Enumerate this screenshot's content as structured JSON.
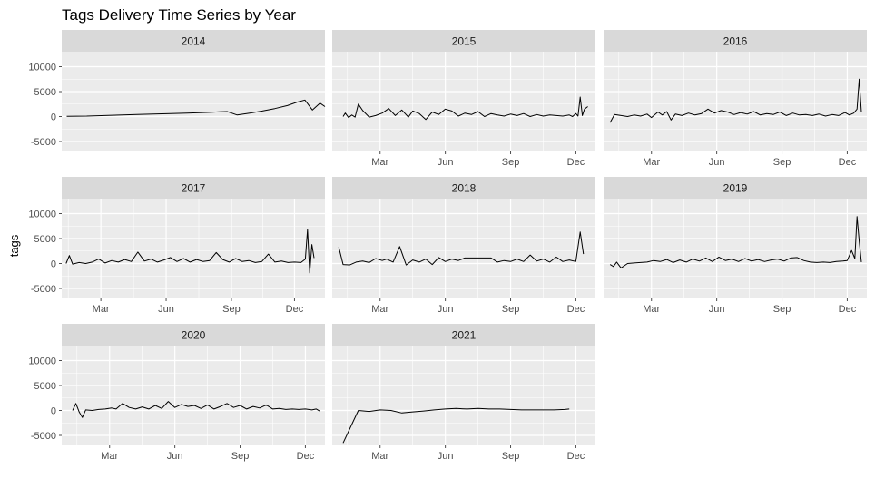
{
  "chart_data": {
    "type": "line",
    "title": "Tags Delivery Time Series by Year",
    "xlabel": "",
    "ylabel": "tags",
    "ylim": [
      -7000,
      13000
    ],
    "y_ticks": [
      -5000,
      0,
      5000,
      10000
    ],
    "y_tick_labels": [
      "-5000",
      "0",
      "5000",
      "10000"
    ],
    "x_ticks": [
      "Mar",
      "Jun",
      "Sep",
      "Dec"
    ],
    "grid": true,
    "legend": "none",
    "colors": {
      "panel_bg": "#ebebeb",
      "strip_bg": "#d9d9d9",
      "grid_major": "#ffffff",
      "line": "#000000",
      "tick": "#4d4d4d"
    },
    "facets": [
      {
        "label": "2014",
        "xlim": [
          0,
          10.5
        ],
        "show_x_axis": false,
        "x_tick_pos": [],
        "x_tick_labels": [],
        "x": [
          0.2,
          1,
          2,
          3,
          4,
          5,
          6,
          6.3,
          6.6,
          7,
          7.5,
          8,
          8.5,
          9,
          9.4,
          9.7,
          10,
          10.3,
          10.5
        ],
        "y": [
          50,
          100,
          250,
          400,
          550,
          700,
          850,
          950,
          1000,
          300,
          700,
          1100,
          1600,
          2200,
          2900,
          3300,
          1300,
          2700,
          2000
        ]
      },
      {
        "label": "2015",
        "xlim": [
          -0.2,
          11.9
        ],
        "show_x_axis": true,
        "x_tick_pos": [
          2,
          5,
          8,
          11
        ],
        "x_tick_labels": [
          "Mar",
          "Jun",
          "Sep",
          "Dec"
        ],
        "x": [
          0.3,
          0.4,
          0.55,
          0.7,
          0.85,
          1,
          1.2,
          1.5,
          1.8,
          2.1,
          2.4,
          2.7,
          3,
          3.3,
          3.5,
          3.8,
          4.1,
          4.4,
          4.7,
          5,
          5.3,
          5.6,
          5.9,
          6.2,
          6.5,
          6.8,
          7.1,
          7.4,
          7.7,
          8,
          8.3,
          8.6,
          8.9,
          9.2,
          9.5,
          9.8,
          10.1,
          10.4,
          10.7,
          10.85,
          11,
          11.1,
          11.2,
          11.3,
          11.4,
          11.55
        ],
        "y": [
          0,
          700,
          -200,
          300,
          -100,
          2500,
          1200,
          -100,
          200,
          700,
          1600,
          200,
          1300,
          -100,
          1100,
          600,
          -600,
          900,
          400,
          1500,
          1100,
          100,
          700,
          400,
          1000,
          0,
          600,
          300,
          100,
          500,
          200,
          600,
          0,
          400,
          100,
          300,
          200,
          100,
          300,
          0,
          600,
          100,
          3900,
          200,
          1500,
          2000
        ]
      },
      {
        "label": "2016",
        "xlim": [
          -0.2,
          11.9
        ],
        "show_x_axis": true,
        "x_tick_pos": [
          2,
          5,
          8,
          11
        ],
        "x_tick_labels": [
          "Mar",
          "Jun",
          "Sep",
          "Dec"
        ],
        "x": [
          0.1,
          0.3,
          0.6,
          0.9,
          1.2,
          1.5,
          1.8,
          2,
          2.3,
          2.5,
          2.7,
          2.9,
          3.1,
          3.4,
          3.7,
          4,
          4.3,
          4.6,
          4.9,
          5.2,
          5.5,
          5.8,
          6.1,
          6.4,
          6.7,
          7,
          7.3,
          7.6,
          7.9,
          8.2,
          8.5,
          8.8,
          9.1,
          9.4,
          9.7,
          10,
          10.3,
          10.6,
          10.9,
          11.1,
          11.3,
          11.45,
          11.55,
          11.65
        ],
        "y": [
          -1200,
          400,
          200,
          0,
          300,
          100,
          500,
          -200,
          900,
          300,
          1000,
          -700,
          500,
          200,
          700,
          300,
          600,
          1500,
          700,
          1200,
          900,
          400,
          800,
          500,
          1000,
          300,
          600,
          400,
          900,
          200,
          700,
          300,
          400,
          200,
          500,
          100,
          400,
          200,
          800,
          300,
          700,
          1500,
          7500,
          900
        ]
      },
      {
        "label": "2017",
        "xlim": [
          -0.2,
          11.9
        ],
        "show_x_axis": true,
        "x_tick_pos": [
          1.6,
          4.6,
          7.6,
          10.5
        ],
        "x_tick_labels": [
          "Mar",
          "Jun",
          "Sep",
          "Dec"
        ],
        "x": [
          0,
          0.15,
          0.3,
          0.6,
          0.9,
          1.2,
          1.5,
          1.8,
          2.1,
          2.4,
          2.7,
          3,
          3.3,
          3.6,
          3.9,
          4.2,
          4.5,
          4.8,
          5.1,
          5.4,
          5.7,
          6,
          6.3,
          6.6,
          6.9,
          7.2,
          7.5,
          7.8,
          8.1,
          8.4,
          8.7,
          9,
          9.3,
          9.6,
          9.9,
          10.2,
          10.5,
          10.8,
          11,
          11.1,
          11.2,
          11.3,
          11.4
        ],
        "y": [
          0,
          1600,
          -100,
          200,
          0,
          300,
          900,
          100,
          600,
          300,
          800,
          400,
          2300,
          500,
          900,
          300,
          700,
          1200,
          400,
          1000,
          300,
          800,
          400,
          600,
          2200,
          800,
          300,
          1000,
          400,
          600,
          200,
          400,
          1900,
          300,
          500,
          200,
          300,
          200,
          900,
          6800,
          -1900,
          3800,
          1100
        ]
      },
      {
        "label": "2018",
        "xlim": [
          -0.2,
          11.9
        ],
        "show_x_axis": true,
        "x_tick_pos": [
          2,
          5,
          8,
          11
        ],
        "x_tick_labels": [
          "Mar",
          "Jun",
          "Sep",
          "Dec"
        ],
        "x": [
          0.1,
          0.3,
          0.6,
          0.9,
          1.2,
          1.5,
          1.8,
          2.1,
          2.3,
          2.6,
          2.9,
          3.2,
          3.5,
          3.8,
          4.1,
          4.4,
          4.7,
          5,
          5.3,
          5.6,
          5.9,
          6.2,
          6.5,
          6.8,
          7.1,
          7.4,
          7.7,
          8,
          8.3,
          8.6,
          8.9,
          9.2,
          9.5,
          9.8,
          10.1,
          10.4,
          10.7,
          11,
          11.2,
          11.35
        ],
        "y": [
          3300,
          -200,
          -300,
          300,
          500,
          200,
          1000,
          600,
          900,
          300,
          3400,
          -300,
          700,
          300,
          900,
          -200,
          1200,
          400,
          900,
          600,
          1100,
          1100,
          1100,
          1100,
          1100,
          300,
          600,
          400,
          900,
          400,
          1700,
          500,
          900,
          300,
          1300,
          400,
          700,
          400,
          6300,
          1900
        ]
      },
      {
        "label": "2019",
        "xlim": [
          -0.2,
          11.9
        ],
        "show_x_axis": true,
        "x_tick_pos": [
          2,
          5,
          8,
          11
        ],
        "x_tick_labels": [
          "Mar",
          "Jun",
          "Sep",
          "Dec"
        ],
        "x": [
          0.1,
          0.25,
          0.4,
          0.6,
          0.9,
          1.2,
          1.5,
          1.8,
          2.1,
          2.4,
          2.7,
          3,
          3.3,
          3.6,
          3.9,
          4.2,
          4.5,
          4.8,
          5.1,
          5.4,
          5.7,
          6,
          6.3,
          6.6,
          6.9,
          7.2,
          7.5,
          7.8,
          8.1,
          8.4,
          8.7,
          9,
          9.3,
          9.6,
          9.9,
          10.2,
          10.5,
          10.8,
          11,
          11.2,
          11.35,
          11.45,
          11.55,
          11.65
        ],
        "y": [
          -200,
          -600,
          300,
          -900,
          0,
          100,
          200,
          300,
          600,
          400,
          800,
          200,
          700,
          300,
          900,
          500,
          1100,
          400,
          1300,
          600,
          900,
          400,
          1000,
          500,
          800,
          400,
          700,
          900,
          500,
          1100,
          1200,
          600,
          300,
          200,
          300,
          200,
          400,
          500,
          600,
          2600,
          1000,
          9400,
          4500,
          300
        ]
      },
      {
        "label": "2020",
        "xlim": [
          -0.2,
          11.9
        ],
        "show_x_axis": true,
        "x_tick_pos": [
          2,
          5,
          8,
          11
        ],
        "x_tick_labels": [
          "Mar",
          "Jun",
          "Sep",
          "Dec"
        ],
        "x": [
          0.3,
          0.45,
          0.6,
          0.75,
          0.9,
          1.2,
          1.5,
          1.8,
          2.1,
          2.3,
          2.6,
          2.9,
          3.2,
          3.5,
          3.8,
          4.1,
          4.4,
          4.7,
          5,
          5.3,
          5.6,
          5.9,
          6.2,
          6.5,
          6.8,
          7.1,
          7.4,
          7.7,
          8,
          8.3,
          8.6,
          8.9,
          9.2,
          9.5,
          9.8,
          10.1,
          10.4,
          10.7,
          11,
          11.3,
          11.5,
          11.65
        ],
        "y": [
          0,
          1400,
          -300,
          -1400,
          100,
          0,
          200,
          300,
          500,
          300,
          1400,
          600,
          300,
          700,
          300,
          1000,
          400,
          1800,
          600,
          1200,
          800,
          1000,
          400,
          1100,
          300,
          800,
          1400,
          600,
          1000,
          300,
          800,
          500,
          1100,
          300,
          400,
          200,
          300,
          200,
          300,
          100,
          300,
          -100
        ]
      },
      {
        "label": "2021",
        "xlim": [
          -0.2,
          11.9
        ],
        "show_x_axis": true,
        "x_tick_pos": [
          2,
          5,
          8,
          11
        ],
        "x_tick_labels": [
          "Mar",
          "Jun",
          "Sep",
          "Dec"
        ],
        "x": [
          0.3,
          1,
          1.5,
          2,
          2.5,
          3,
          3.5,
          4,
          4.5,
          5,
          5.5,
          6,
          6.5,
          7,
          7.5,
          8,
          8.5,
          9,
          9.5,
          10,
          10.5,
          10.7
        ],
        "y": [
          -6500,
          0,
          -200,
          100,
          0,
          -500,
          -300,
          -100,
          100,
          300,
          400,
          300,
          400,
          300,
          300,
          200,
          100,
          100,
          100,
          100,
          200,
          300
        ]
      }
    ]
  }
}
